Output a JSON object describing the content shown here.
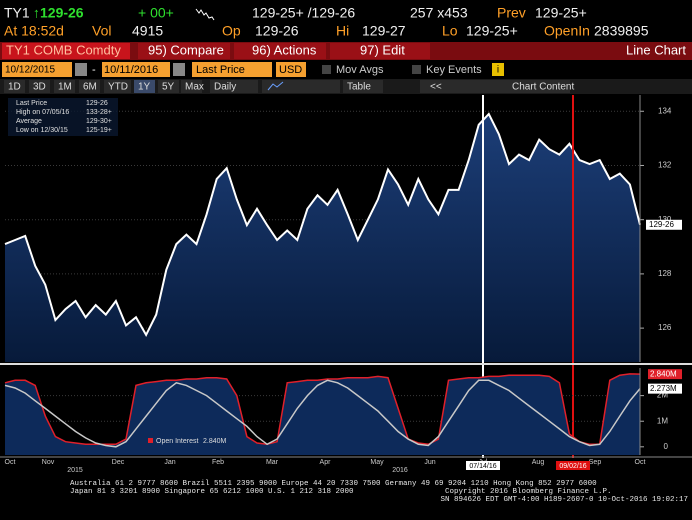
{
  "header": {
    "ticker": "TY1",
    "last": "↑129-26",
    "change": "+ 00+",
    "bid_ask": "129-25+ /129-26",
    "size": "257 x453",
    "prev_label": "Prev",
    "prev": "129-25+",
    "time": "At 18:52d",
    "vol_label": "Vol",
    "vol": "4915",
    "op_label": "Op",
    "op": "129-26",
    "hi_label": "Hi",
    "hi": "129-27",
    "lo_label": "Lo",
    "lo": "129-25+",
    "openint_label": "OpenIn",
    "openint": "2839895"
  },
  "toolbar": {
    "security": "TY1 COMB Comdty",
    "buttons": [
      "95) Compare",
      "96) Actions",
      "97) Edit"
    ],
    "view": "Line Chart",
    "start_date": "10/12/2015",
    "end_date": "10/11/2016",
    "field": "Last Price",
    "currency": "USD",
    "mov_avgs": "Mov Avgs",
    "key_events": "Key Events",
    "info": "i",
    "periods": [
      "1D",
      "3D",
      "1M",
      "6M",
      "YTD",
      "1Y",
      "5Y",
      "Max"
    ],
    "frequency": "Daily",
    "table": "Table",
    "back": "<<",
    "chart_content": "Chart Content"
  },
  "chart_data": [
    {
      "type": "area",
      "series": [
        {
          "name": "Last Price",
          "color": "#ffffff",
          "values": [
            129.1,
            129.25,
            129.4,
            128.3,
            127.6,
            126.3,
            126.7,
            127.0,
            126.4,
            126.85,
            126.5,
            127.0,
            126.1,
            126.4,
            125.75,
            126.5,
            128.15,
            129.1,
            129.45,
            129.1,
            130.2,
            131.5,
            131.9,
            130.75,
            129.8,
            130.4,
            129.8,
            129.25,
            129.6,
            129.25,
            130.4,
            130.9,
            130.55,
            131.1,
            130.2,
            129.25,
            130.0,
            130.75,
            131.85,
            131.3,
            130.55,
            131.5,
            130.75,
            130.2,
            131.1,
            131.1,
            132.2,
            133.5,
            133.9,
            133.15,
            132.05,
            132.4,
            132.2,
            132.95,
            132.6,
            132.4,
            132.8,
            132.2,
            132.05,
            132.2,
            131.5,
            131.7,
            131.3,
            129.8125
          ]
        }
      ],
      "ylim": [
        124.75,
        134.6
      ],
      "yticks": [
        126,
        128,
        130,
        132,
        134
      ],
      "grid": true,
      "last_label": {
        "value": 129.8125,
        "label": "129-26"
      },
      "legend": [
        {
          "label": "Last Price",
          "value": "129-26"
        },
        {
          "label": "High on 07/05/16",
          "value": "133-28+"
        },
        {
          "label": "Average",
          "value": "129-30+"
        },
        {
          "label": "Low on 12/30/15",
          "value": "125-19+"
        }
      ],
      "x_labels": [
        "Oct",
        "Nov",
        "Dec",
        "Jan",
        "Feb",
        "Mar",
        "Apr",
        "May",
        "Jun",
        "Jul",
        "Aug",
        "Sep",
        "Oct"
      ],
      "years": [
        "2015",
        "2016"
      ],
      "markers": [
        {
          "label": "07/14/16",
          "color": "#ffffff"
        },
        {
          "label": "09/02/16",
          "color": "#e01010"
        }
      ]
    },
    {
      "type": "line",
      "series": [
        {
          "name": "Open Interest",
          "color": "#e0202a",
          "last_label": "2.840M",
          "values": [
            2.5,
            2.6,
            2.6,
            2.4,
            1.2,
            0.4,
            0.2,
            0.15,
            0.1,
            0.1,
            0.1,
            0.1,
            0.3,
            2.4,
            2.5,
            2.55,
            2.6,
            2.6,
            2.65,
            2.65,
            2.7,
            2.7,
            2.65,
            2.0,
            0.4,
            0.15,
            0.1,
            0.2,
            2.5,
            2.55,
            2.6,
            2.6,
            2.65,
            2.65,
            2.7,
            2.7,
            2.7,
            2.75,
            2.7,
            1.5,
            0.3,
            0.15,
            0.1,
            0.3,
            2.6,
            2.65,
            2.7,
            2.7,
            2.75,
            2.75,
            2.8,
            2.8,
            2.8,
            2.8,
            2.75,
            2.5,
            0.5,
            0.2,
            0.1,
            0.1,
            2.6,
            2.8,
            2.85,
            2.84
          ]
        },
        {
          "color": "#c8c8c8",
          "last_label": "2.273M",
          "values": [
            2.4,
            2.3,
            2.1,
            1.8,
            1.5,
            1.2,
            0.9,
            0.6,
            0.35,
            0.15,
            0.05,
            0.0,
            0.2,
            0.7,
            1.2,
            1.7,
            2.2,
            2.5,
            2.4,
            2.2,
            2.0,
            1.7,
            1.4,
            1.1,
            0.8,
            0.4,
            0.1,
            0.3,
            0.9,
            1.5,
            2.0,
            2.4,
            2.6,
            2.5,
            2.3,
            2.0,
            1.7,
            1.4,
            1.0,
            0.6,
            0.3,
            0.1,
            0.05,
            0.4,
            1.0,
            1.6,
            2.2,
            2.6,
            2.6,
            2.4,
            2.2,
            1.9,
            1.6,
            1.3,
            1.0,
            0.7,
            0.4,
            0.2,
            0.05,
            0.1,
            0.6,
            1.2,
            1.8,
            2.273
          ]
        }
      ],
      "ylim": [
        -0.32,
        3.08
      ],
      "yticks": [
        0,
        {
          "value": 1,
          "label": "1M"
        },
        {
          "value": 2,
          "label": "2M"
        }
      ]
    }
  ],
  "footer": {
    "contacts": [
      "Australia 61 2 9777 8600 Brazil 5511 2395 9000 Europe 44 20 7330 7500 Germany 49 69 9204 1210 Hong Kong 852 2977 6000",
      "Japan 81 3 3201 8900       Singapore 65 6212 1000       U.S. 1 212 318 2000"
    ],
    "copyright": "Copyright 2016 Bloomberg Finance L.P.",
    "session": "SN 894626 EDT  GMT-4:00 H189-2607-0 10-Oct-2016 19:02:17"
  }
}
